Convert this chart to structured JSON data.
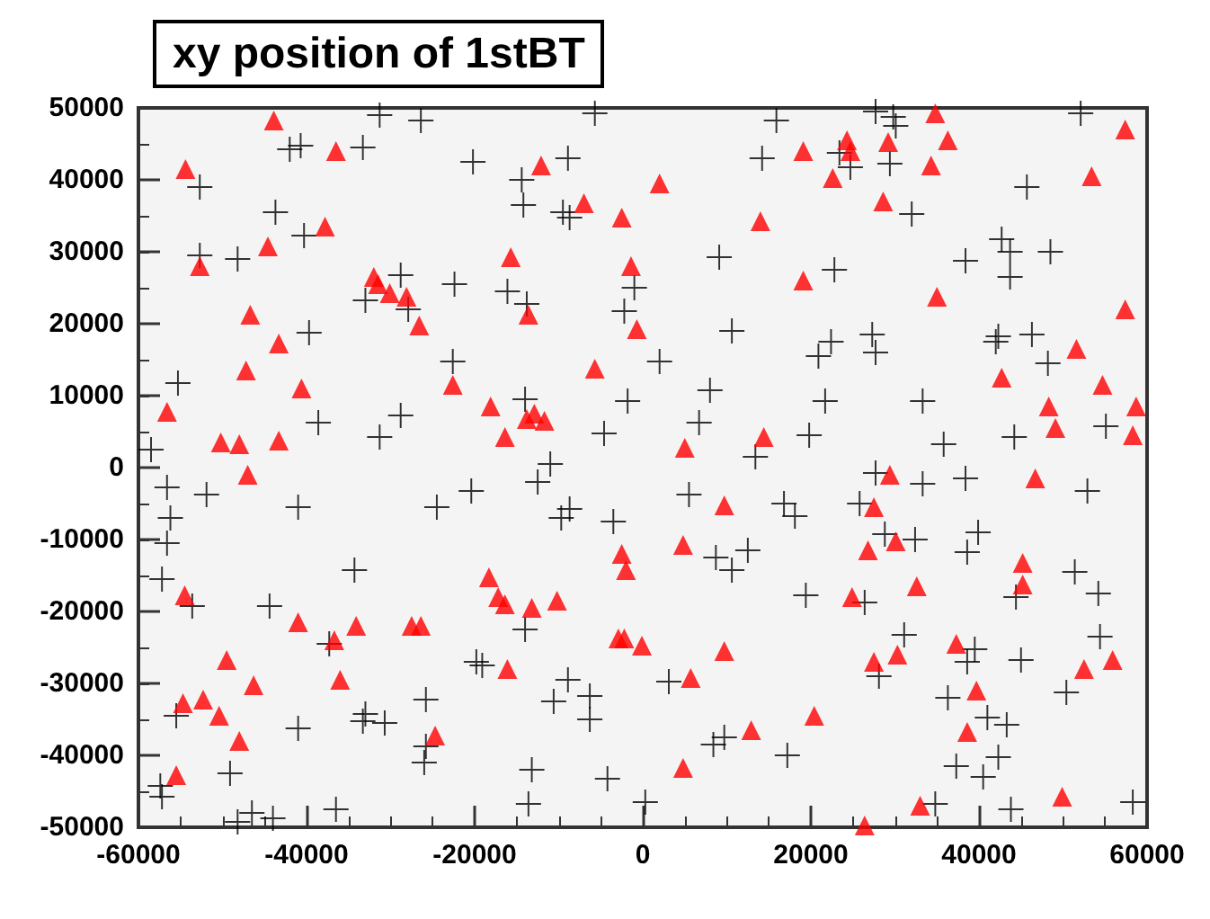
{
  "chart_data": {
    "type": "scatter",
    "title": "xy position of 1stBT",
    "xlim": [
      -60000,
      60000
    ],
    "ylim": [
      -50000,
      50000
    ],
    "xticks": [
      -60000,
      -40000,
      -20000,
      0,
      20000,
      40000,
      60000
    ],
    "yticks": [
      -50000,
      -40000,
      -30000,
      -20000,
      -10000,
      0,
      10000,
      20000,
      30000,
      40000,
      50000
    ],
    "grid": false,
    "series": [
      {
        "color": "#000000",
        "marker": "cross",
        "x": [
          -58500,
          -55300,
          -52700,
          -52700,
          -48200,
          -43700,
          -42000,
          -40700,
          -40300,
          -33300,
          -31300,
          -26400,
          -20200,
          -28800,
          -33000,
          -27900,
          -22400,
          -39700,
          -22600,
          -28800,
          -38600,
          -31300,
          -5700,
          15900,
          -8900,
          -14400,
          -14200,
          -9500,
          -8700,
          14200,
          9100,
          -16100,
          -13800,
          -1000,
          -2200,
          10600,
          2000,
          8000,
          -1800,
          -14000,
          6700,
          -4600,
          13400,
          19800,
          -11000,
          27700,
          29800,
          30100,
          23400,
          24700,
          29400,
          52100,
          32000,
          45700,
          42700,
          43700,
          43700,
          48500,
          38400,
          22800,
          27300,
          27700,
          22400,
          20900,
          42300,
          42000,
          46300,
          48200,
          21700,
          33300,
          35800,
          44200,
          55100,
          -56600,
          -51900,
          -56200,
          -56600,
          -57200,
          -41000,
          -24500,
          -20400,
          -34300,
          -44400,
          -53600,
          -37300,
          -19800,
          -25800,
          -33000,
          -33300,
          -30700,
          -41000,
          -25800,
          -26000,
          -55500,
          -49100,
          -57400,
          -57200,
          -36500,
          -46500,
          -44000,
          -48200,
          -12500,
          -8700,
          -9700,
          -3500,
          5500,
          16800,
          18100,
          8700,
          10600,
          12500,
          19400,
          -14000,
          -19100,
          -8900,
          -6300,
          -10600,
          -6300,
          3100,
          8400,
          9700,
          17200,
          -13200,
          -4200,
          -13600,
          300,
          27700,
          33300,
          38400,
          52900,
          25800,
          28800,
          32400,
          39900,
          38600,
          51400,
          54200,
          26400,
          44400,
          31100,
          39500,
          38600,
          45000,
          54400,
          28100,
          36300,
          50400,
          41000,
          43300,
          42300,
          37300,
          40500,
          34800,
          43800,
          58300
        ],
        "values": [
          2500,
          11750,
          39000,
          29500,
          29000,
          35500,
          44250,
          44750,
          32250,
          44500,
          49000,
          48250,
          42500,
          26750,
          23250,
          22000,
          25500,
          18750,
          14750,
          7250,
          6250,
          4250,
          49250,
          48250,
          43000,
          40000,
          36500,
          35500,
          34750,
          43000,
          29250,
          24500,
          22750,
          25000,
          21750,
          19000,
          14750,
          10750,
          9250,
          9500,
          6250,
          4750,
          1500,
          4500,
          500,
          49500,
          48750,
          47500,
          43750,
          41750,
          42250,
          49250,
          35250,
          39000,
          31750,
          30000,
          26500,
          30000,
          28750,
          27500,
          18500,
          16000,
          17500,
          15500,
          18250,
          17500,
          18500,
          14500,
          9250,
          9250,
          3250,
          4250,
          5750,
          -2750,
          -3750,
          -7000,
          -10500,
          -15500,
          -5500,
          -5500,
          -3250,
          -14250,
          -19250,
          -19250,
          -24500,
          -27000,
          -32250,
          -34250,
          -35250,
          -35500,
          -36250,
          -38750,
          -41000,
          -34500,
          -42500,
          -44250,
          -45750,
          -47500,
          -48000,
          -48750,
          -49250,
          -2000,
          -5750,
          -7000,
          -7500,
          -3750,
          -5000,
          -6750,
          -12500,
          -14250,
          -11500,
          -17750,
          -22500,
          -27500,
          -29500,
          -31750,
          -32500,
          -35000,
          -29750,
          -38500,
          -37500,
          -40000,
          -42000,
          -43250,
          -46750,
          -46500,
          -750,
          -2250,
          -1500,
          -3250,
          -5000,
          -9250,
          -10000,
          -9000,
          -11750,
          -14500,
          -17500,
          -18750,
          -18000,
          -23250,
          -25250,
          -27000,
          -26750,
          -23500,
          -29000,
          -32000,
          -31250,
          -34750,
          -35750,
          -40250,
          -41500,
          -43000,
          -46750,
          -47500,
          -46500
        ]
      },
      {
        "color": "#ff0000",
        "marker": "triangle",
        "x": [
          -43900,
          -54400,
          -36500,
          -37800,
          -44600,
          -52700,
          -32000,
          -31500,
          -30100,
          -28100,
          -26600,
          -46700,
          -43300,
          -47200,
          -40600,
          -22600,
          -56600,
          -50200,
          -48000,
          -43300,
          -12100,
          -7000,
          -2500,
          2000,
          14000,
          19100,
          19100,
          -15700,
          -1400,
          -13600,
          -700,
          -5700,
          -18100,
          -12900,
          -11700,
          -13800,
          -16400,
          5000,
          14400,
          34800,
          24300,
          24700,
          29200,
          36300,
          22600,
          34300,
          28600,
          53400,
          57400,
          35000,
          57400,
          51600,
          42700,
          54700,
          48300,
          58700,
          49100,
          58300,
          -47000,
          -54500,
          -41000,
          -36700,
          -34100,
          -27500,
          -26400,
          -49500,
          -46300,
          -36000,
          -54700,
          -52300,
          -50400,
          -48000,
          -24700,
          -55500,
          -18300,
          -17200,
          -16400,
          -13200,
          -10200,
          -16100,
          -2500,
          -2000,
          -2900,
          -2200,
          -100,
          4800,
          9700,
          9700,
          5700,
          12900,
          4800,
          20400,
          29400,
          46700,
          27500,
          26800,
          30100,
          45200,
          45200,
          32600,
          24900,
          27500,
          30300,
          37300,
          39700,
          38600,
          52500,
          55900,
          33000,
          26400,
          49900
        ],
        "values": [
          48250,
          41500,
          44000,
          33500,
          30750,
          28000,
          26500,
          25500,
          24250,
          23750,
          19750,
          21250,
          17250,
          13500,
          11000,
          11500,
          7750,
          3500,
          3250,
          3750,
          42000,
          36750,
          34750,
          39500,
          34250,
          44000,
          26000,
          29250,
          28000,
          21250,
          19250,
          13750,
          8500,
          7500,
          6500,
          6750,
          4250,
          2750,
          4250,
          49250,
          45500,
          44000,
          45250,
          45500,
          40250,
          42000,
          37000,
          40500,
          47000,
          23750,
          22000,
          16500,
          12500,
          11500,
          8500,
          8500,
          5500,
          4500,
          -1000,
          -17750,
          -21500,
          -24000,
          -22000,
          -22000,
          -22000,
          -26750,
          -30250,
          -29500,
          -32750,
          -32250,
          -34500,
          -38000,
          -37250,
          -42750,
          -15250,
          -18000,
          -19000,
          -19500,
          -18500,
          -28000,
          -12000,
          -14250,
          -23750,
          -23750,
          -24750,
          -10750,
          -5250,
          -25500,
          -29250,
          -36500,
          -41750,
          -34500,
          -1000,
          -1500,
          -5500,
          -11500,
          -10250,
          -13250,
          -16250,
          -16500,
          -18000,
          -27000,
          -26000,
          -24500,
          -31000,
          -36750,
          -28000,
          -26750,
          -47000,
          -49750,
          -45750
        ]
      }
    ]
  }
}
